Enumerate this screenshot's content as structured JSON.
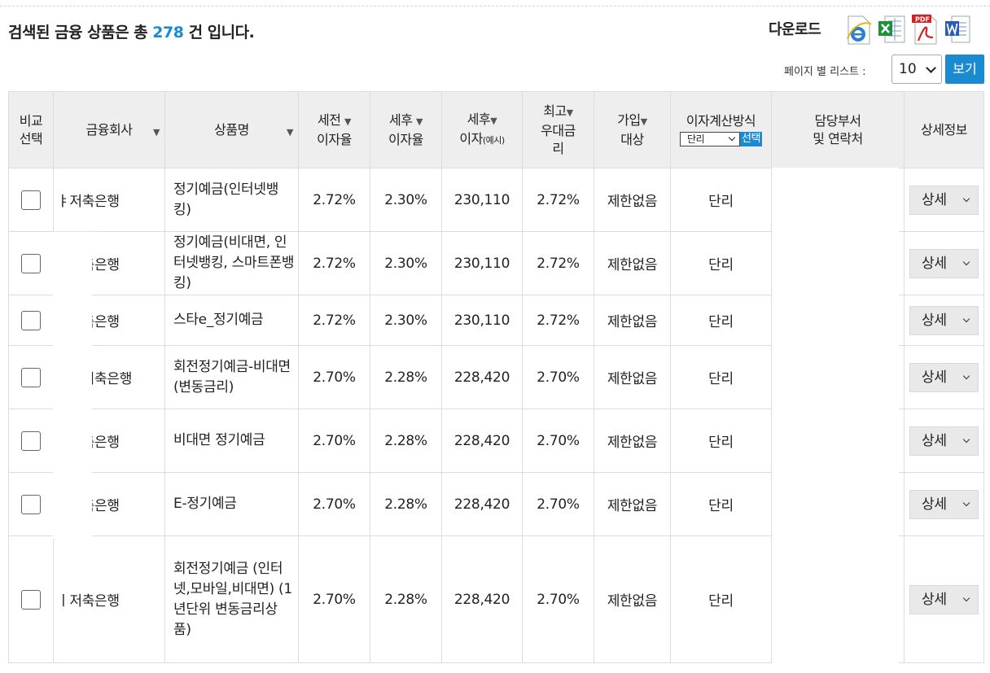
{
  "summary": {
    "prefix": "검색된 금융 상품은 총",
    "count": "278",
    "suffix": "건 입니다."
  },
  "download": {
    "label": "다운로드",
    "icons": [
      "ie-icon",
      "excel-icon",
      "pdf-icon",
      "word-icon"
    ],
    "pdf_text": "PDF"
  },
  "per_page": {
    "label": "페이지 별 리스트 :",
    "value": "10",
    "button": "보기"
  },
  "headers": {
    "compare": [
      "비교",
      "선택"
    ],
    "company": "금융회사",
    "product": "상품명",
    "pre_tax": [
      "세전",
      "이자율"
    ],
    "post_tax": [
      "세후",
      "이자율"
    ],
    "post_interest": [
      "세후",
      "이자",
      "(예시)"
    ],
    "max_rate": [
      "최고",
      "우대금",
      "리"
    ],
    "eligibility": [
      "가입",
      "대상"
    ],
    "calc_method": {
      "label": "이자계산방식",
      "select_value": "단리",
      "button": "선택"
    },
    "department": [
      "담당부서",
      "및 연락처"
    ],
    "detail": "상세정보"
  },
  "sort_glyph": "▼",
  "rows": [
    {
      "company": "ㅑ저축은행",
      "product": "정기예금(인터넷뱅킹)",
      "pre_tax": "2.72%",
      "post_tax": "2.30%",
      "interest": "230,110",
      "max_rate": "2.72%",
      "eligibility": "제한없음",
      "calc": "단리",
      "detail": "상세"
    },
    {
      "company": "ㅑ저축은행",
      "product": "정기예금(비대면, 인터넷뱅킹, 스마트폰뱅킹)",
      "pre_tax": "2.72%",
      "post_tax": "2.30%",
      "interest": "230,110",
      "max_rate": "2.72%",
      "eligibility": "제한없음",
      "calc": "단리",
      "detail": "상세"
    },
    {
      "company": "ㅑ저축은행",
      "product": "스타e_정기예금",
      "pre_tax": "2.72%",
      "post_tax": "2.30%",
      "interest": "230,110",
      "max_rate": "2.72%",
      "eligibility": "제한없음",
      "calc": "단리",
      "detail": "상세"
    },
    {
      "company": "ㅣ일저축은행",
      "product": "회전정기예금-비대면(변동금리)",
      "pre_tax": "2.70%",
      "post_tax": "2.28%",
      "interest": "228,420",
      "max_rate": "2.70%",
      "eligibility": "제한없음",
      "calc": "단리",
      "detail": "상세"
    },
    {
      "company": "ㅌ저축은행",
      "product": "비대면 정기예금",
      "pre_tax": "2.70%",
      "post_tax": "2.28%",
      "interest": "228,420",
      "max_rate": "2.70%",
      "eligibility": "제한없음",
      "calc": "단리",
      "detail": "상세"
    },
    {
      "company": "ㅌ저축은행",
      "product": "E-정기예금",
      "pre_tax": "2.70%",
      "post_tax": "2.28%",
      "interest": "228,420",
      "max_rate": "2.70%",
      "eligibility": "제한없음",
      "calc": "단리",
      "detail": "상세"
    },
    {
      "company": "ㅣ저축은행",
      "product": "회전정기예금 (인터넷,모바일,비대면) (1년단위 변동금리상품)",
      "pre_tax": "2.70%",
      "post_tax": "2.28%",
      "interest": "228,420",
      "max_rate": "2.70%",
      "eligibility": "제한없음",
      "calc": "단리",
      "detail": "상세"
    }
  ]
}
